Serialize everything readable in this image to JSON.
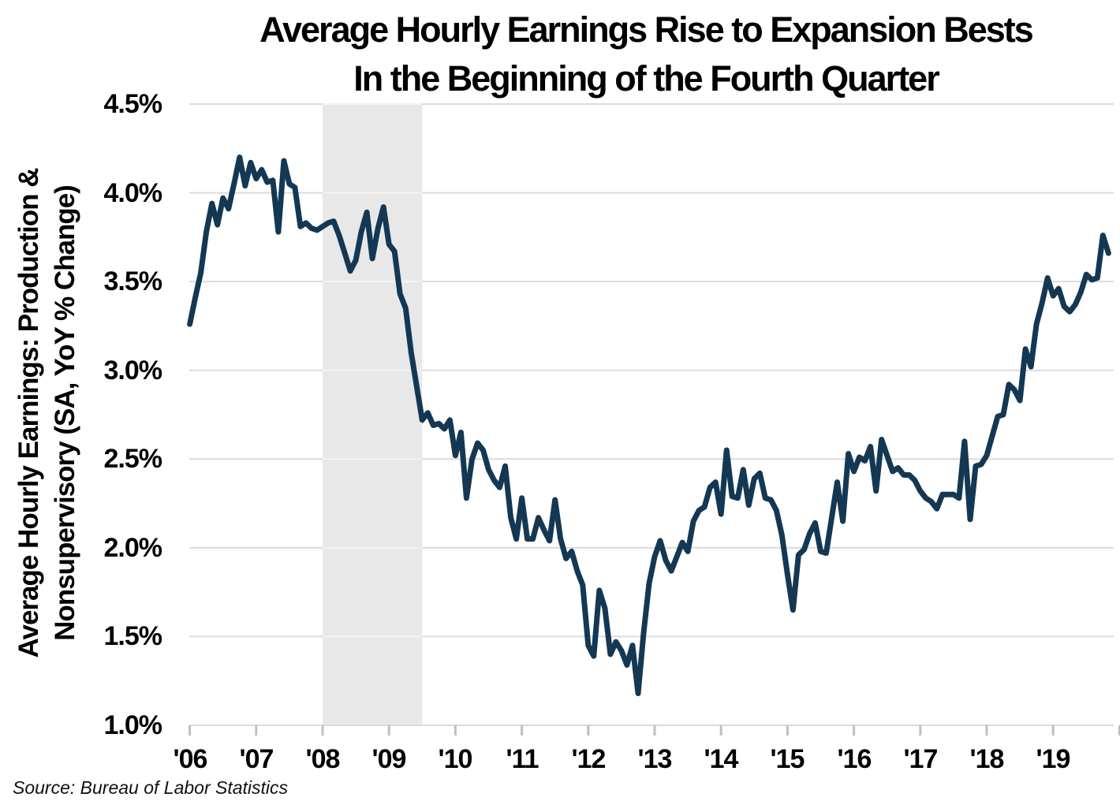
{
  "title": {
    "line1": "Average Hourly Earnings Rise to Expansion Bests",
    "line2": "In the Beginning of the Fourth Quarter"
  },
  "y_axis": {
    "title_line1": "Average Hourly Earnings: Production &",
    "title_line2": "Nonsupervisory (SA, YoY % Change)",
    "ticks": [
      "4.5%",
      "4.0%",
      "3.5%",
      "3.0%",
      "2.5%",
      "2.0%",
      "1.5%",
      "1.0%"
    ]
  },
  "x_axis": {
    "labels": [
      "'06",
      "'07",
      "'08",
      "'09",
      "'10",
      "'11",
      "'12",
      "'13",
      "'14",
      "'15",
      "'16",
      "'17",
      "'18",
      "'19"
    ],
    "tick_years": [
      2006,
      2007,
      2008,
      2009,
      2010,
      2011,
      2012,
      2013,
      2014,
      2015,
      2016,
      2017,
      2018,
      2019,
      2020
    ]
  },
  "source": "Source: Bureau of Labor Statistics",
  "colors": {
    "line": "#143853",
    "recession_band": "#e8e8e8",
    "gridline": "#dbdbdb",
    "gridline_in_band": "#f4f4f4",
    "tick_mark": "#c0c0c0",
    "text": "#000000"
  },
  "chart_data": {
    "type": "line",
    "title": "Average Hourly Earnings Rise to Expansion Bests In the Beginning of the Fourth Quarter",
    "ylabel": "Average Hourly Earnings: Production & Nonsupervisory (SA, YoY % Change)",
    "xlabel": "",
    "ylim": [
      1.0,
      4.5
    ],
    "ytick_values": [
      4.5,
      4.0,
      3.5,
      3.0,
      2.5,
      2.0,
      1.5,
      1.0
    ],
    "grid": "horizontal",
    "legend": "none",
    "frequency": "monthly",
    "start": "2006-01",
    "end": "2019-11",
    "recession_band": {
      "label": "recession shading",
      "start_year_frac": 2008.0,
      "end_year_frac": 2009.5
    },
    "series": [
      {
        "name": "AHE Production & Nonsupervisory YoY %",
        "values": [
          3.26,
          3.41,
          3.55,
          3.78,
          3.94,
          3.82,
          3.97,
          3.91,
          4.05,
          4.2,
          4.04,
          4.17,
          4.08,
          4.13,
          4.06,
          4.07,
          3.78,
          4.18,
          4.05,
          4.03,
          3.81,
          3.83,
          3.8,
          3.79,
          3.81,
          3.83,
          3.84,
          3.76,
          3.66,
          3.56,
          3.62,
          3.78,
          3.89,
          3.63,
          3.8,
          3.92,
          3.71,
          3.67,
          3.43,
          3.35,
          3.1,
          2.91,
          2.72,
          2.76,
          2.69,
          2.7,
          2.67,
          2.72,
          2.52,
          2.65,
          2.28,
          2.5,
          2.59,
          2.55,
          2.44,
          2.38,
          2.34,
          2.46,
          2.17,
          2.05,
          2.28,
          2.05,
          2.05,
          2.17,
          2.1,
          2.04,
          2.27,
          2.05,
          1.94,
          1.98,
          1.87,
          1.79,
          1.45,
          1.39,
          1.76,
          1.66,
          1.4,
          1.47,
          1.42,
          1.34,
          1.45,
          1.18,
          1.52,
          1.8,
          1.95,
          2.04,
          1.93,
          1.87,
          1.95,
          2.03,
          1.98,
          2.15,
          2.21,
          2.23,
          2.34,
          2.37,
          2.19,
          2.55,
          2.29,
          2.28,
          2.44,
          2.24,
          2.39,
          2.42,
          2.28,
          2.27,
          2.21,
          2.07,
          1.85,
          1.65,
          1.96,
          1.99,
          2.08,
          2.14,
          1.98,
          1.97,
          2.17,
          2.37,
          2.15,
          2.53,
          2.43,
          2.51,
          2.49,
          2.57,
          2.32,
          2.61,
          2.52,
          2.43,
          2.45,
          2.41,
          2.41,
          2.38,
          2.32,
          2.28,
          2.26,
          2.22,
          2.3,
          2.3,
          2.3,
          2.28,
          2.6,
          2.16,
          2.46,
          2.47,
          2.52,
          2.63,
          2.74,
          2.75,
          2.92,
          2.89,
          2.83,
          3.12,
          3.02,
          3.26,
          3.38,
          3.52,
          3.42,
          3.46,
          3.36,
          3.33,
          3.37,
          3.44,
          3.54,
          3.51,
          3.52,
          3.76,
          3.66
        ]
      }
    ]
  }
}
